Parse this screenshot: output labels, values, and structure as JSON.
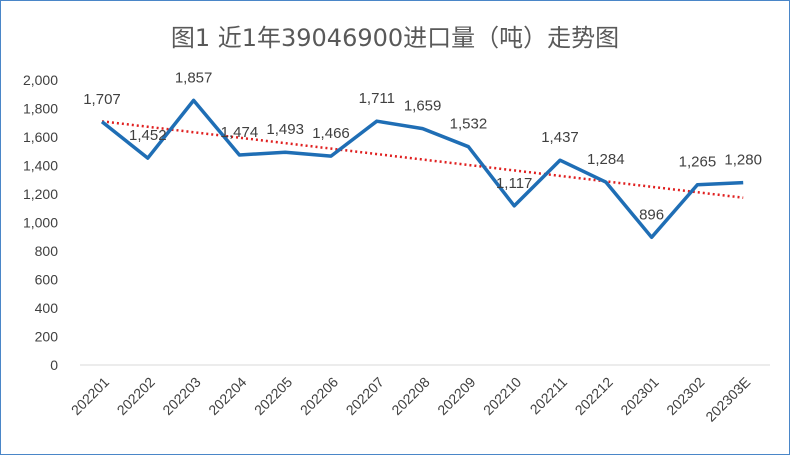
{
  "chart_data": {
    "type": "line",
    "title": "图1 近1年39046900进口量（吨）走势图",
    "categories": [
      "202201",
      "202202",
      "202203",
      "202204",
      "202205",
      "202206",
      "202207",
      "202208",
      "202209",
      "202210",
      "202211",
      "202212",
      "202301",
      "202302",
      "202303E"
    ],
    "series": [
      {
        "values": [
          1707,
          1452,
          1857,
          1474,
          1493,
          1466,
          1711,
          1659,
          1532,
          1117,
          1437,
          1284,
          896,
          1265,
          1280
        ]
      }
    ],
    "data_labels": [
      "1,707",
      "1,452",
      "1,857",
      "1,474",
      "1,493",
      "1,466",
      "1,711",
      "1,659",
      "1,532",
      "1,117",
      "1,437",
      "1,284",
      "896",
      "1,265",
      "1,280"
    ],
    "yticks": [
      "0",
      "200",
      "400",
      "600",
      "800",
      "1,000",
      "1,200",
      "1,400",
      "1,600",
      "1,800",
      "2,000"
    ],
    "ylim": [
      0,
      2000
    ],
    "trendline": "linear",
    "grid": false,
    "legend": "none",
    "colors": {
      "line": "#1f6eb5",
      "trend": "#e02020",
      "text": "#404040",
      "title": "#595959",
      "border": "#4a86c8"
    }
  }
}
